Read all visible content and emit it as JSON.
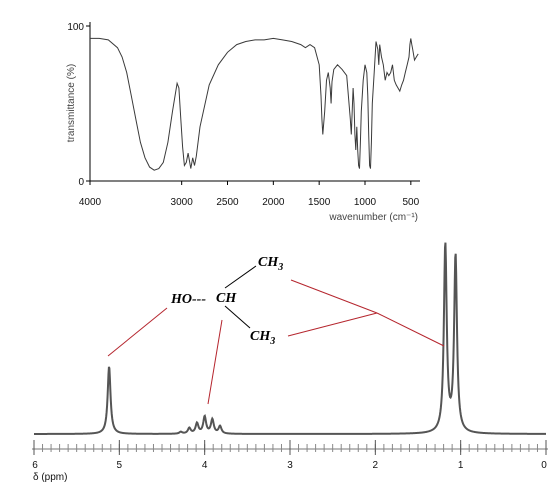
{
  "chart_data": [
    {
      "type": "line",
      "name": "ir-spectrum",
      "xlabel": "wavenumber (cm⁻¹)",
      "ylabel": "transmittance (%)",
      "x_ticks": [
        "4000",
        "3000",
        "2500",
        "2000",
        "1500",
        "1000",
        "500"
      ],
      "y_ticks": [
        "100",
        "0"
      ],
      "xlim": [
        4000,
        400
      ],
      "ylim": [
        0,
        100
      ],
      "x_reversed": true,
      "grid": false,
      "series": [
        {
          "x": [
            4000,
            3900,
            3800,
            3700,
            3650,
            3600,
            3550,
            3500,
            3450,
            3400,
            3350,
            3300,
            3250,
            3200,
            3150,
            3100,
            3050,
            3030,
            3010,
            2990,
            2970,
            2950,
            2930,
            2900,
            2880,
            2860,
            2840,
            2800,
            2700,
            2600,
            2500,
            2400,
            2300,
            2200,
            2100,
            2000,
            1900,
            1800,
            1700,
            1650,
            1600,
            1550,
            1500,
            1480,
            1470,
            1460,
            1440,
            1420,
            1400,
            1380,
            1370,
            1360,
            1340,
            1300,
            1250,
            1200,
            1160,
            1150,
            1140,
            1130,
            1120,
            1110,
            1100,
            1090,
            1080,
            1070,
            1060,
            1050,
            1040,
            1020,
            1000,
            980,
            970,
            960,
            950,
            940,
            930,
            920,
            900,
            880,
            860,
            850,
            840,
            820,
            800,
            780,
            760,
            740,
            720,
            700,
            680,
            660,
            640,
            620,
            600,
            580,
            560,
            540,
            520,
            510,
            500,
            490,
            480,
            460,
            440,
            420
          ],
          "y": [
            92,
            92,
            91,
            86,
            80,
            70,
            55,
            40,
            25,
            15,
            9,
            7,
            8,
            12,
            25,
            45,
            63,
            60,
            40,
            22,
            10,
            12,
            18,
            8,
            15,
            10,
            16,
            35,
            62,
            75,
            83,
            88,
            90,
            91,
            91,
            92,
            91,
            90,
            88,
            86,
            88,
            86,
            75,
            55,
            40,
            30,
            45,
            65,
            70,
            60,
            50,
            64,
            72,
            75,
            72,
            68,
            40,
            30,
            45,
            60,
            50,
            30,
            20,
            35,
            20,
            10,
            8,
            25,
            45,
            65,
            75,
            70,
            55,
            30,
            10,
            8,
            25,
            50,
            70,
            90,
            85,
            75,
            88,
            80,
            75,
            65,
            70,
            68,
            70,
            75,
            65,
            62,
            60,
            58,
            62,
            65,
            70,
            75,
            80,
            88,
            92,
            88,
            85,
            78,
            80,
            82
          ]
        }
      ]
    },
    {
      "type": "line",
      "name": "nmr-spectrum",
      "xlabel": "δ (ppm)",
      "x_ticks": [
        "6",
        "5",
        "4",
        "3",
        "2",
        "1",
        "0"
      ],
      "xlim": [
        6,
        0
      ],
      "x_reversed": true,
      "grid": false,
      "peaks": [
        {
          "shift": 5.12,
          "height": 0.36
        },
        {
          "shift": 4.28,
          "height": 0.01
        },
        {
          "shift": 4.18,
          "height": 0.03
        },
        {
          "shift": 4.09,
          "height": 0.055
        },
        {
          "shift": 4.0,
          "height": 0.09
        },
        {
          "shift": 3.91,
          "height": 0.075
        },
        {
          "shift": 3.82,
          "height": 0.04
        },
        {
          "shift": 1.18,
          "height": 1.0
        },
        {
          "shift": 1.06,
          "height": 0.94
        }
      ]
    }
  ],
  "structure": {
    "hydroxyl": "HO---",
    "ch": "CH",
    "methyl_top": "CH",
    "methyl_top_sub": "3",
    "methyl_bottom": "CH",
    "methyl_bottom_sub": "3"
  },
  "colors": {
    "annotation": "#b5262e",
    "spectrum": "#3a3a3a",
    "nmr_trace": "#555555"
  }
}
